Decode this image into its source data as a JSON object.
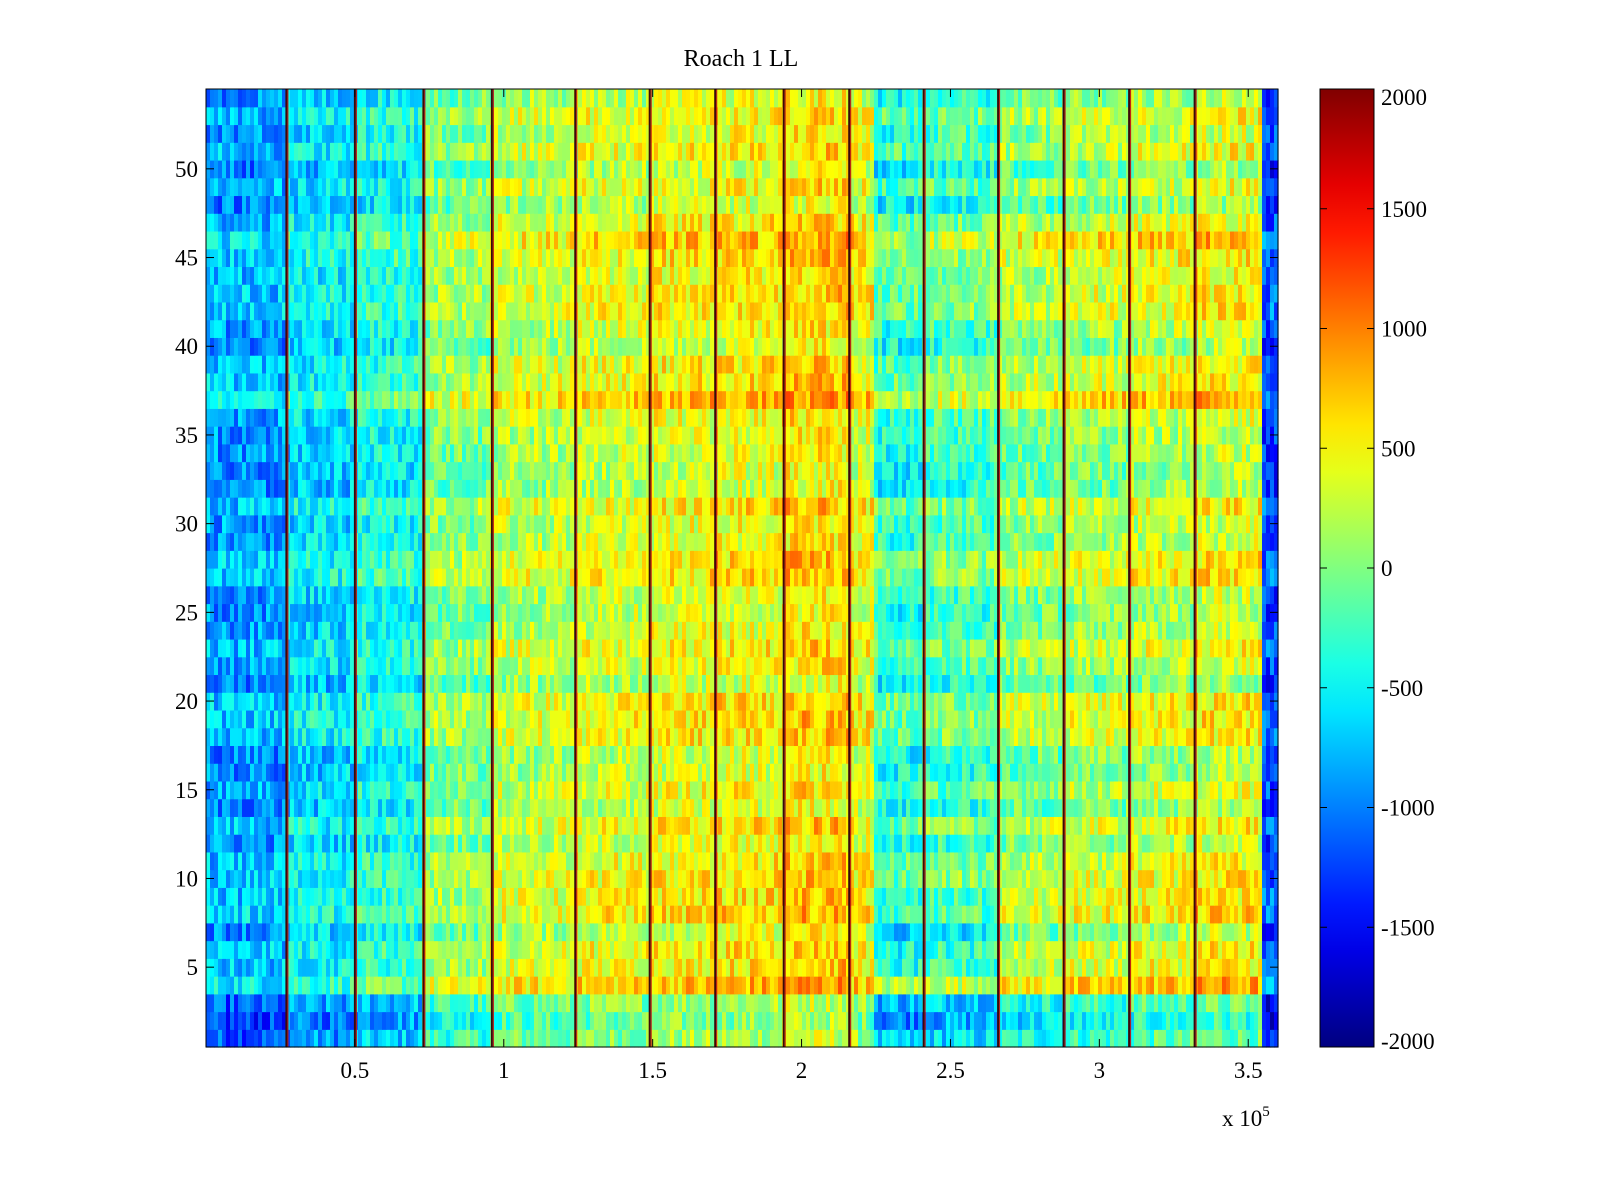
{
  "chart_data": {
    "type": "heatmap",
    "title": "Roach 1 LL",
    "xlabel": "",
    "ylabel": "",
    "x_multiplier": {
      "base": "x 10",
      "exponent": "5"
    },
    "xlim": [
      0,
      360000
    ],
    "ylim": [
      0.5,
      54.5
    ],
    "rows": 54,
    "x_ticks": [
      {
        "value": 0.5,
        "label": "0.5"
      },
      {
        "value": 1.0,
        "label": "1"
      },
      {
        "value": 1.5,
        "label": "1.5"
      },
      {
        "value": 2.0,
        "label": "2"
      },
      {
        "value": 2.5,
        "label": "2.5"
      },
      {
        "value": 3.0,
        "label": "3"
      },
      {
        "value": 3.5,
        "label": "3.5"
      }
    ],
    "y_ticks": [
      {
        "value": 5,
        "label": "5"
      },
      {
        "value": 10,
        "label": "10"
      },
      {
        "value": 15,
        "label": "15"
      },
      {
        "value": 20,
        "label": "20"
      },
      {
        "value": 25,
        "label": "25"
      },
      {
        "value": 30,
        "label": "30"
      },
      {
        "value": 35,
        "label": "35"
      },
      {
        "value": 40,
        "label": "40"
      },
      {
        "value": 45,
        "label": "45"
      },
      {
        "value": 50,
        "label": "50"
      }
    ],
    "colorbar": {
      "colormap": "jet",
      "clim": [
        -2000,
        2000
      ],
      "ticks": [
        {
          "value": 2000,
          "label": "2000"
        },
        {
          "value": 1500,
          "label": "1500"
        },
        {
          "value": 1000,
          "label": "1000"
        },
        {
          "value": 500,
          "label": "500"
        },
        {
          "value": 0,
          "label": "0"
        },
        {
          "value": -500,
          "label": "-500"
        },
        {
          "value": -1000,
          "label": "-1000"
        },
        {
          "value": -1500,
          "label": "-1500"
        },
        {
          "value": -2000,
          "label": "-2000"
        }
      ]
    },
    "vertical_boundaries_x": [
      27000,
      50000,
      73000,
      96000,
      124000,
      149000,
      171000,
      194000,
      216000,
      241000,
      266000,
      288000,
      310000,
      332000
    ],
    "column_segments_value": [
      {
        "x_range": [
          0,
          27000
        ],
        "value": -850
      },
      {
        "x_range": [
          27000,
          50000
        ],
        "value": -600
      },
      {
        "x_range": [
          50000,
          73000
        ],
        "value": -420
      },
      {
        "x_range": [
          73000,
          96000
        ],
        "value": 30
      },
      {
        "x_range": [
          96000,
          124000
        ],
        "value": 230
      },
      {
        "x_range": [
          124000,
          149000
        ],
        "value": 330
      },
      {
        "x_range": [
          149000,
          171000
        ],
        "value": 420
      },
      {
        "x_range": [
          171000,
          194000
        ],
        "value": 470
      },
      {
        "x_range": [
          194000,
          216000
        ],
        "value": 600
      },
      {
        "x_range": [
          216000,
          224000
        ],
        "value": 400
      },
      {
        "x_range": [
          224000,
          241000
        ],
        "value": -300
      },
      {
        "x_range": [
          241000,
          266000
        ],
        "value": -180
      },
      {
        "x_range": [
          266000,
          288000
        ],
        "value": 60
      },
      {
        "x_range": [
          288000,
          310000
        ],
        "value": 160
      },
      {
        "x_range": [
          310000,
          332000
        ],
        "value": 260
      },
      {
        "x_range": [
          332000,
          354000
        ],
        "value": 360
      },
      {
        "x_range": [
          354000,
          360000
        ],
        "value": -1200
      }
    ]
  }
}
